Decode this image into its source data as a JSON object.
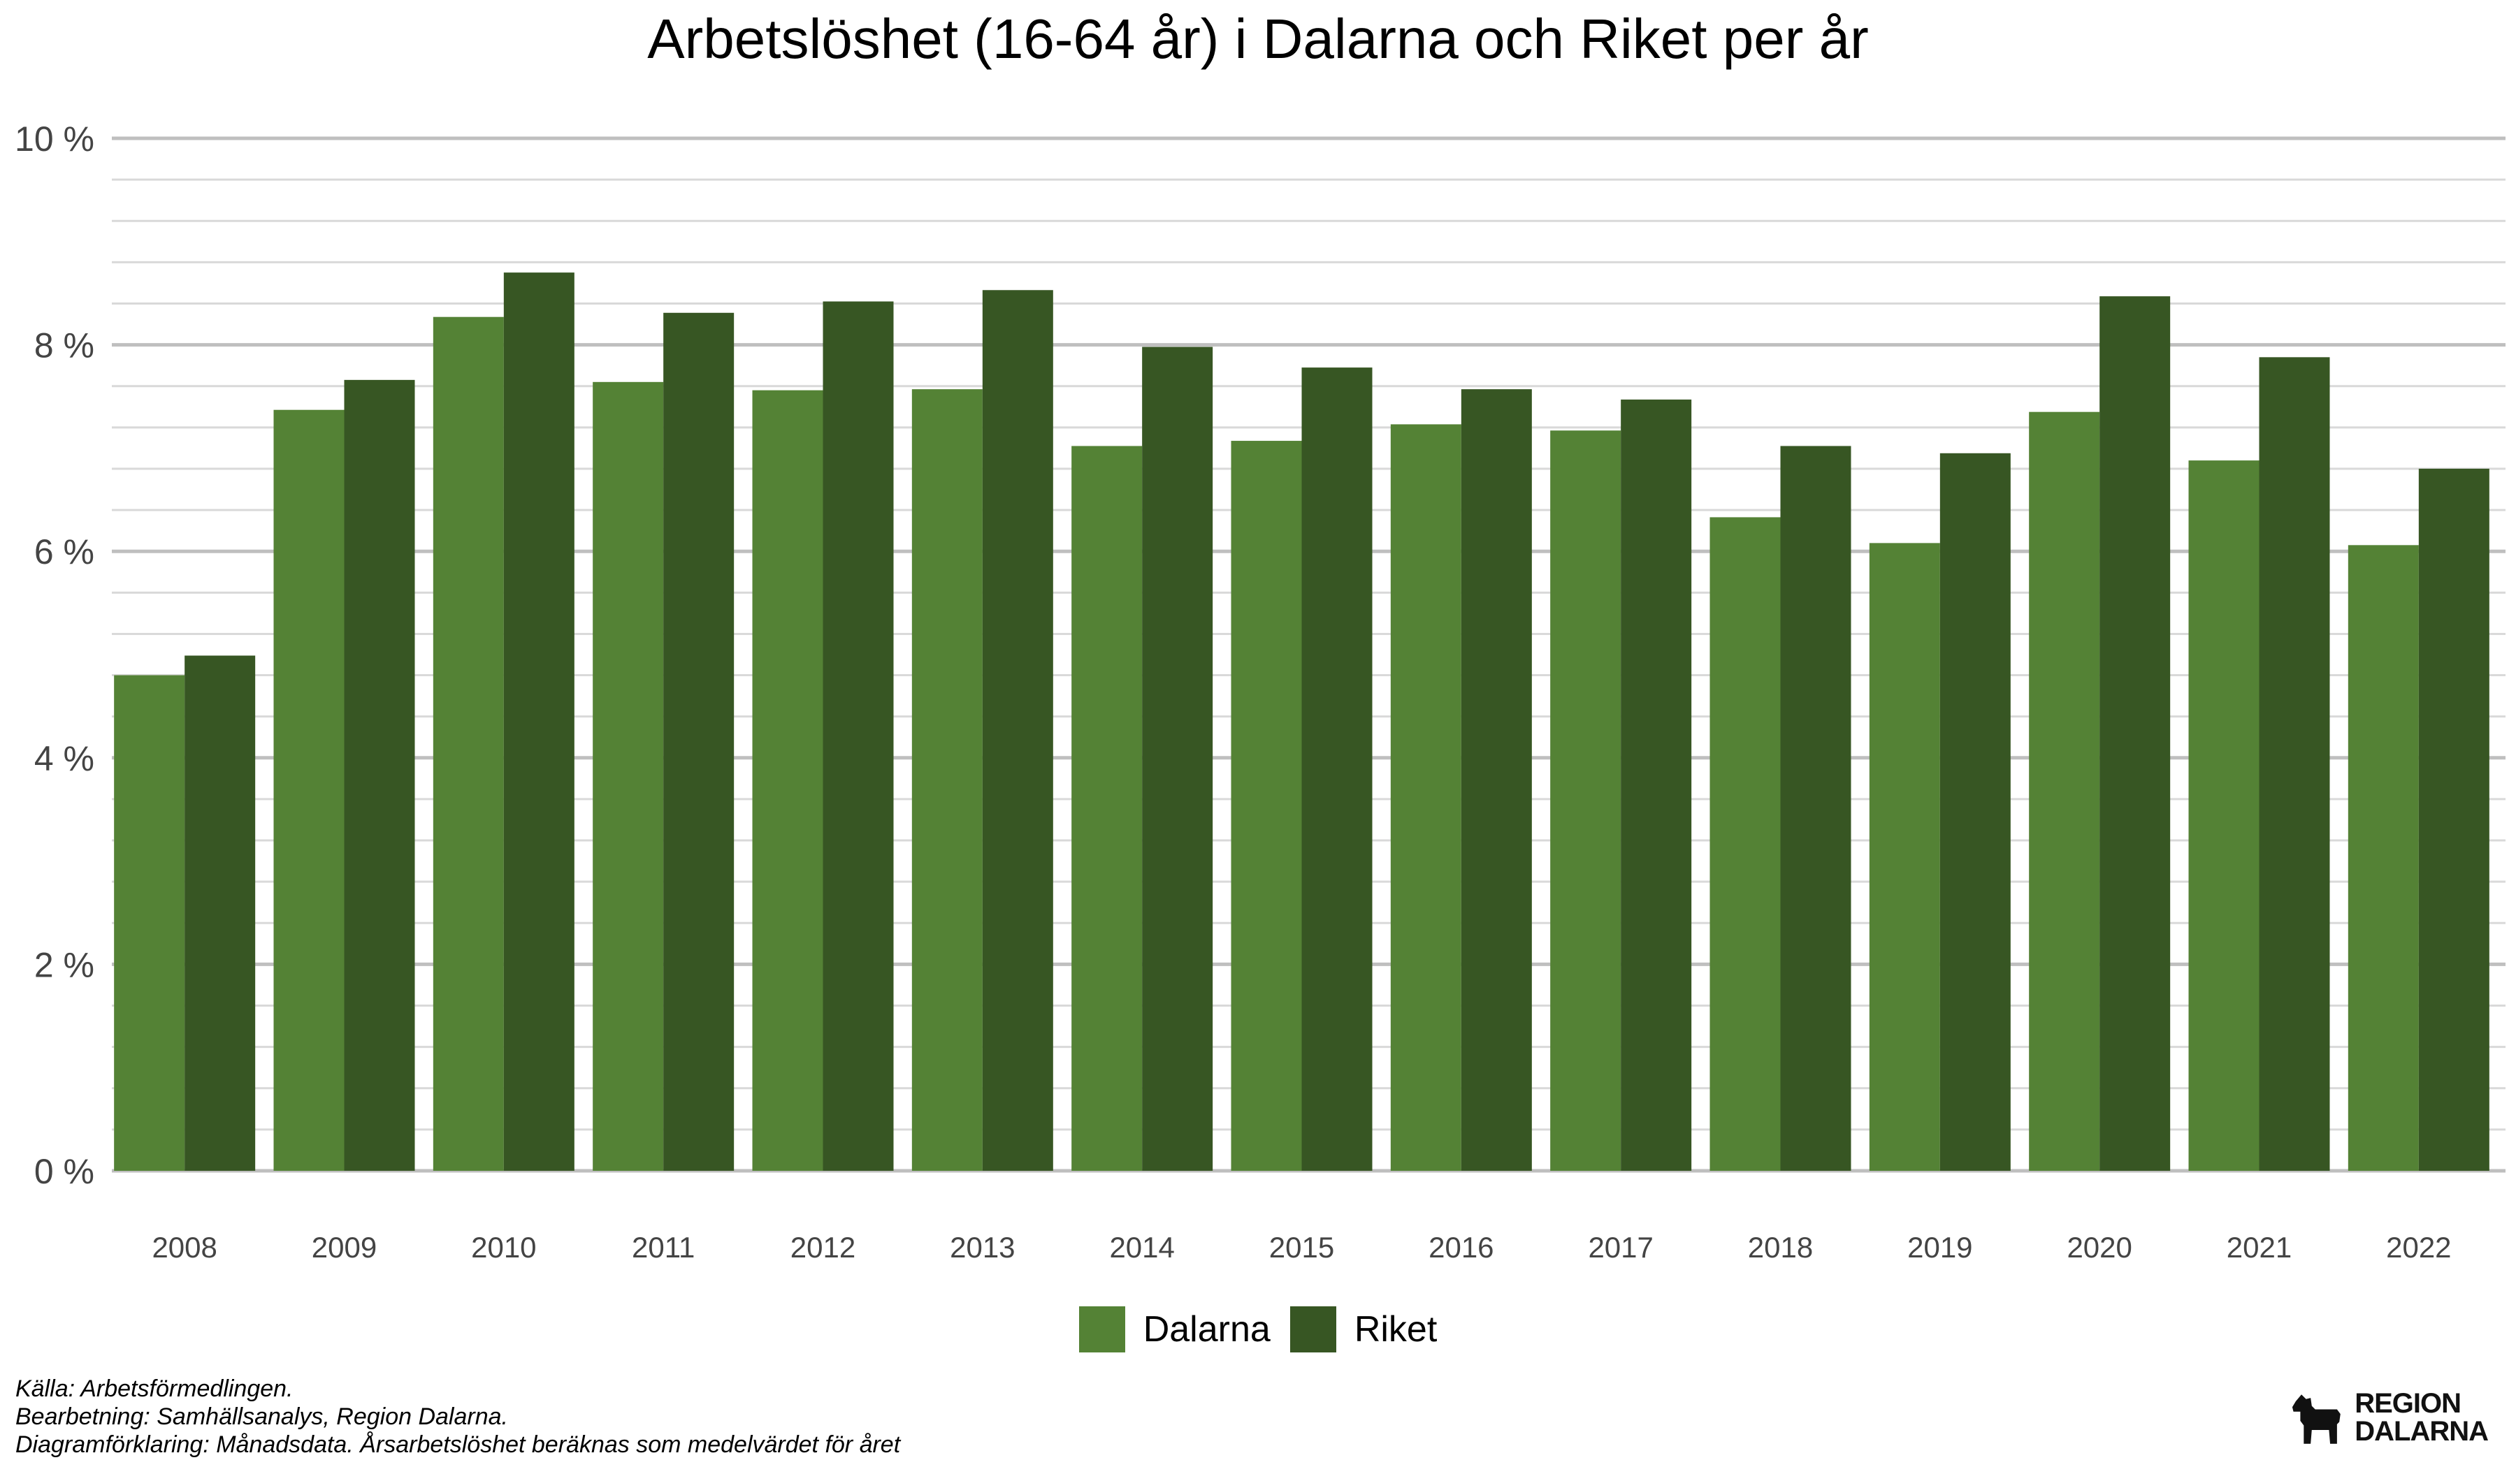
{
  "chart_data": {
    "type": "bar",
    "title": "Arbetslöshet (16-64 år) i Dalarna och Riket per år",
    "xlabel": "",
    "ylabel": "",
    "ylim": [
      0,
      10
    ],
    "yticks": [
      0,
      2,
      4,
      6,
      8,
      10
    ],
    "ytick_labels": [
      "0 %",
      "2 %",
      "4 %",
      "6 %",
      "8 %",
      "10 %"
    ],
    "grid": true,
    "legend": "bottom-center",
    "categories": [
      "2008",
      "2009",
      "2010",
      "2011",
      "2012",
      "2013",
      "2014",
      "2015",
      "2016",
      "2017",
      "2018",
      "2019",
      "2020",
      "2021",
      "2022"
    ],
    "series": [
      {
        "name": "Dalarna",
        "color": "#548235",
        "values": [
          4.8,
          7.37,
          8.27,
          7.64,
          7.56,
          7.57,
          7.02,
          7.07,
          7.23,
          7.17,
          6.33,
          6.08,
          7.35,
          6.88,
          6.06
        ]
      },
      {
        "name": "Riket",
        "color": "#375623",
        "values": [
          4.99,
          7.66,
          8.7,
          8.31,
          8.42,
          8.53,
          7.98,
          7.78,
          7.57,
          7.47,
          7.02,
          6.95,
          8.47,
          7.88,
          6.8
        ]
      }
    ]
  },
  "caption": {
    "source": "Källa: Arbetsförmedlingen.",
    "processing": "Bearbetning: Samhällsanalys, Region Dalarna.",
    "explanation": "Diagramförklaring: Månadsdata. Årsarbetslöshet beräknas som medelvärdet för året"
  },
  "logo": {
    "line1": "REGION",
    "line2": "DALARNA"
  }
}
